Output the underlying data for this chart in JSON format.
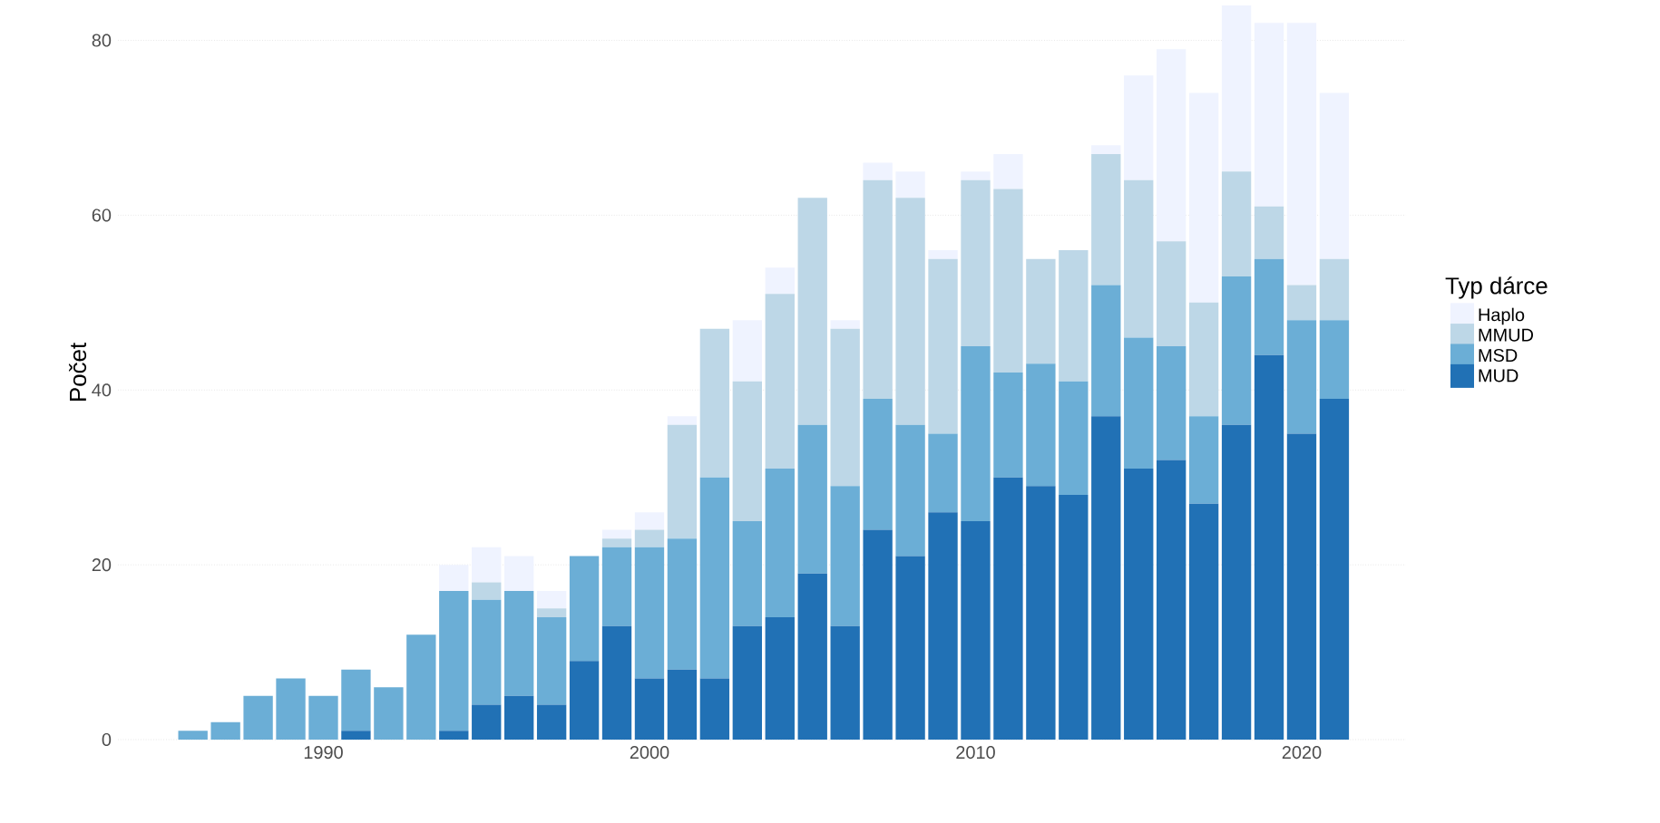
{
  "chart_data": {
    "type": "bar",
    "stacked": true,
    "ylabel": "Počet",
    "legend_title": "Typ dárce",
    "legend": "right",
    "grid": "y",
    "x": [
      1986,
      1987,
      1988,
      1989,
      1990,
      1991,
      1992,
      1993,
      1994,
      1995,
      1996,
      1997,
      1998,
      1999,
      2000,
      2001,
      2002,
      2003,
      2004,
      2005,
      2006,
      2007,
      2008,
      2009,
      2010,
      2011,
      2012,
      2013,
      2014,
      2015,
      2016,
      2017,
      2018,
      2019,
      2020,
      2021
    ],
    "xlim": [
      1983.7,
      2023.2
    ],
    "xticks": [
      1990,
      2000,
      2010,
      2020
    ],
    "ylim": [
      0,
      84
    ],
    "yticks": [
      0,
      20,
      40,
      60,
      80
    ],
    "series": [
      {
        "name": "MUD",
        "color": "#2171b5",
        "values": [
          0,
          0,
          0,
          0,
          0,
          1,
          0,
          0,
          1,
          4,
          5,
          4,
          9,
          13,
          7,
          8,
          7,
          13,
          14,
          19,
          13,
          24,
          21,
          26,
          25,
          30,
          29,
          28,
          37,
          31,
          32,
          27,
          36,
          44,
          35,
          39
        ]
      },
      {
        "name": "MSD",
        "color": "#6baed6",
        "values": [
          1,
          2,
          5,
          7,
          5,
          7,
          6,
          12,
          16,
          12,
          12,
          10,
          12,
          9,
          15,
          15,
          23,
          12,
          17,
          17,
          16,
          15,
          15,
          9,
          20,
          12,
          14,
          13,
          15,
          15,
          13,
          10,
          17,
          11,
          13,
          9
        ]
      },
      {
        "name": "MMUD",
        "color": "#bdd7e7",
        "values": [
          0,
          0,
          0,
          0,
          0,
          0,
          0,
          0,
          0,
          2,
          0,
          1,
          0,
          1,
          2,
          13,
          17,
          16,
          20,
          26,
          18,
          25,
          26,
          20,
          19,
          21,
          12,
          15,
          15,
          18,
          12,
          13,
          12,
          6,
          4,
          7
        ]
      },
      {
        "name": "Haplo",
        "color": "#eff3ff",
        "values": [
          0,
          0,
          0,
          0,
          0,
          0,
          0,
          0,
          3,
          4,
          4,
          2,
          0,
          1,
          2,
          1,
          0,
          7,
          3,
          0,
          1,
          2,
          3,
          1,
          1,
          4,
          0,
          0,
          1,
          12,
          22,
          24,
          19,
          21,
          30,
          19
        ]
      }
    ]
  }
}
